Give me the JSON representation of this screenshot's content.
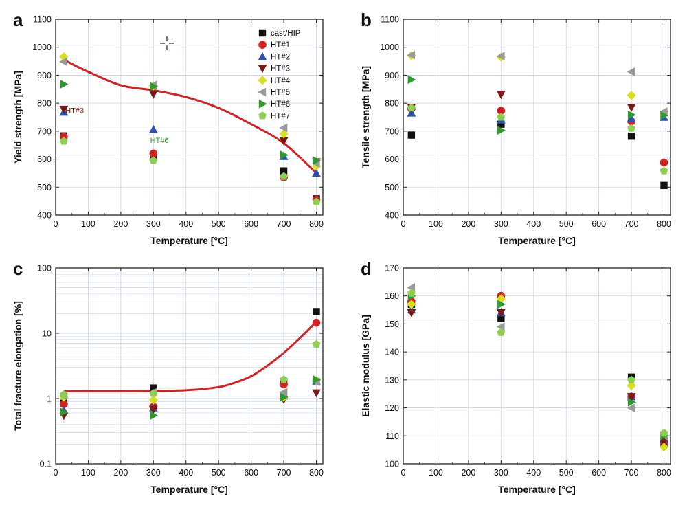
{
  "styles": {
    "series_colors": {
      "cast/HIP": "#111111",
      "HT#1": "#d42020",
      "HT#2": "#2f4fb5",
      "HT#3": "#7a1a14",
      "HT#4": "#d8df1e",
      "HT#5": "#9a9a9a",
      "HT#6": "#2e9a2e",
      "HT#7": "#8dcf52"
    },
    "series_markers": {
      "cast/HIP": "square",
      "HT#1": "circle",
      "HT#2": "triangle-up",
      "HT#3": "triangle-down",
      "HT#4": "diamond",
      "HT#5": "triangle-left",
      "HT#6": "triangle-right",
      "HT#7": "pentagon"
    },
    "fit_curve_color": "#d42020",
    "grid_color": "#c8d3e6"
  },
  "chart_data": [
    {
      "panel_label": "a",
      "type": "scatter",
      "xlabel": "Temperature [°C]",
      "ylabel": "Yield strength [MPa]",
      "xlim": [
        0,
        820
      ],
      "ylim": [
        400,
        1100
      ],
      "xticks": [
        0,
        100,
        200,
        300,
        400,
        500,
        600,
        700,
        800
      ],
      "yticks": [
        400,
        500,
        600,
        700,
        800,
        900,
        1000,
        1100
      ],
      "log_y": false,
      "grid": true,
      "legend_position": "top-right",
      "legend": [
        "cast/HIP",
        "HT#1",
        "HT#2",
        "HT#3",
        "HT#4",
        "HT#5",
        "HT#6",
        "HT#7"
      ],
      "series": [
        {
          "name": "cast/HIP",
          "x": [
            25,
            300,
            700,
            800
          ],
          "y": [
            683,
            605,
            558,
            458
          ]
        },
        {
          "name": "HT#1",
          "x": [
            25,
            300,
            700,
            800
          ],
          "y": [
            680,
            620,
            535,
            455
          ]
        },
        {
          "name": "HT#2",
          "x": [
            25,
            300,
            700,
            800
          ],
          "y": [
            768,
            706,
            610,
            550
          ]
        },
        {
          "name": "HT#3",
          "x": [
            25,
            300,
            700,
            800
          ],
          "y": [
            778,
            832,
            665,
            590
          ]
        },
        {
          "name": "HT#4",
          "x": [
            25,
            300,
            700,
            800
          ],
          "y": [
            966,
            862,
            690,
            575
          ]
        },
        {
          "name": "HT#5",
          "x": [
            25,
            300,
            700,
            800
          ],
          "y": [
            948,
            865,
            712,
            585
          ]
        },
        {
          "name": "HT#6",
          "x": [
            25,
            300,
            700,
            800
          ],
          "y": [
            868,
            860,
            615,
            595
          ]
        },
        {
          "name": "HT#7",
          "x": [
            25,
            300,
            700,
            800
          ],
          "y": [
            664,
            595,
            538,
            447
          ]
        }
      ],
      "fit_curve": {
        "x": [
          25,
          100,
          200,
          300,
          400,
          500,
          600,
          700,
          800
        ],
        "y": [
          955,
          912,
          864,
          846,
          822,
          783,
          725,
          657,
          550
        ]
      },
      "annotations": [
        {
          "text": "HT#3",
          "x": 30,
          "y": 775,
          "color": "#7a1a14"
        },
        {
          "text": "HT#6",
          "x": 290,
          "y": 668,
          "color": "#2e9a2e"
        }
      ]
    },
    {
      "panel_label": "b",
      "type": "scatter",
      "xlabel": "Temperature [°C]",
      "ylabel": "Tensile strength [MPa]",
      "xlim": [
        0,
        820
      ],
      "ylim": [
        400,
        1100
      ],
      "xticks": [
        0,
        100,
        200,
        300,
        400,
        500,
        600,
        700,
        800
      ],
      "yticks": [
        400,
        500,
        600,
        700,
        800,
        900,
        1000,
        1100
      ],
      "log_y": false,
      "grid": true,
      "series": [
        {
          "name": "cast/HIP",
          "x": [
            25,
            300,
            700,
            800
          ],
          "y": [
            686,
            725,
            682,
            506
          ]
        },
        {
          "name": "HT#1",
          "x": [
            25,
            300,
            700,
            800
          ],
          "y": [
            780,
            773,
            735,
            588
          ]
        },
        {
          "name": "HT#2",
          "x": [
            25,
            300,
            700,
            800
          ],
          "y": [
            765,
            740,
            745,
            750
          ]
        },
        {
          "name": "HT#3",
          "x": [
            25,
            300,
            700,
            800
          ],
          "y": [
            785,
            831,
            785,
            760
          ]
        },
        {
          "name": "HT#4",
          "x": [
            25,
            300,
            700,
            800
          ],
          "y": [
            970,
            965,
            828,
            765
          ]
        },
        {
          "name": "HT#5",
          "x": [
            25,
            300,
            700,
            800
          ],
          "y": [
            972,
            968,
            912,
            770
          ]
        },
        {
          "name": "HT#6",
          "x": [
            25,
            300,
            700,
            800
          ],
          "y": [
            884,
            703,
            758,
            756
          ]
        },
        {
          "name": "HT#7",
          "x": [
            25,
            300,
            700,
            800
          ],
          "y": [
            783,
            750,
            710,
            558
          ]
        }
      ]
    },
    {
      "panel_label": "c",
      "type": "scatter",
      "xlabel": "Temperature [°C]",
      "ylabel": "Total fracture elongation [%]",
      "xlim": [
        0,
        820
      ],
      "ylim": [
        0.1,
        100
      ],
      "xticks": [
        0,
        100,
        200,
        300,
        400,
        500,
        600,
        700,
        800
      ],
      "yticks": [
        0.1,
        1,
        10,
        100
      ],
      "ytick_labels": [
        "0.1",
        "1",
        "10",
        "100"
      ],
      "log_y": true,
      "grid": true,
      "series": [
        {
          "name": "cast/HIP",
          "x": [
            25,
            300,
            700,
            800
          ],
          "y": [
            0.85,
            1.45,
            1.75,
            21.5
          ]
        },
        {
          "name": "HT#1",
          "x": [
            25,
            300,
            700,
            800
          ],
          "y": [
            0.82,
            0.75,
            1.65,
            14.5
          ]
        },
        {
          "name": "HT#2",
          "x": [
            25,
            300,
            700,
            800
          ],
          "y": [
            0.66,
            0.72,
            1.1,
            1.85
          ]
        },
        {
          "name": "HT#3",
          "x": [
            25,
            300,
            700,
            800
          ],
          "y": [
            0.55,
            0.68,
            0.97,
            1.22
          ]
        },
        {
          "name": "HT#4",
          "x": [
            25,
            300,
            700,
            800
          ],
          "y": [
            1.05,
            0.95,
            1.05,
            1.9
          ]
        },
        {
          "name": "HT#5",
          "x": [
            25,
            300,
            700,
            800
          ],
          "y": [
            1.1,
            1.25,
            1.25,
            1.8
          ]
        },
        {
          "name": "HT#6",
          "x": [
            25,
            300,
            700,
            800
          ],
          "y": [
            0.62,
            0.55,
            1.05,
            1.95
          ]
        },
        {
          "name": "HT#7",
          "x": [
            25,
            300,
            700,
            800
          ],
          "y": [
            1.15,
            1.2,
            1.95,
            6.8
          ]
        }
      ],
      "fit_curve": {
        "x": [
          25,
          100,
          200,
          300,
          400,
          500,
          550,
          600,
          650,
          700,
          750,
          800
        ],
        "y": [
          1.3,
          1.3,
          1.3,
          1.31,
          1.34,
          1.5,
          1.75,
          2.2,
          3.2,
          5.0,
          8.5,
          15.0
        ]
      }
    },
    {
      "panel_label": "d",
      "type": "scatter",
      "xlabel": "Temperature [°C]",
      "ylabel": "Elastic modulus [GPa]",
      "xlim": [
        0,
        820
      ],
      "ylim": [
        100,
        170
      ],
      "xticks": [
        0,
        100,
        200,
        300,
        400,
        500,
        600,
        700,
        800
      ],
      "yticks": [
        100,
        110,
        120,
        130,
        140,
        150,
        160,
        170
      ],
      "log_y": false,
      "grid": true,
      "series": [
        {
          "name": "cast/HIP",
          "x": [
            25,
            300,
            700,
            800
          ],
          "y": [
            157,
            152,
            131,
            107
          ]
        },
        {
          "name": "HT#1",
          "x": [
            25,
            300,
            700,
            800
          ],
          "y": [
            158,
            160,
            124,
            108
          ]
        },
        {
          "name": "HT#2",
          "x": [
            25,
            300,
            700,
            800
          ],
          "y": [
            155,
            154,
            124,
            109
          ]
        },
        {
          "name": "HT#3",
          "x": [
            25,
            300,
            700,
            800
          ],
          "y": [
            154,
            154,
            124,
            108
          ]
        },
        {
          "name": "HT#4",
          "x": [
            25,
            300,
            700,
            800
          ],
          "y": [
            157,
            159,
            128,
            106
          ]
        },
        {
          "name": "HT#5",
          "x": [
            25,
            300,
            700,
            800
          ],
          "y": [
            163,
            149,
            120,
            110
          ]
        },
        {
          "name": "HT#6",
          "x": [
            25,
            300,
            700,
            800
          ],
          "y": [
            160,
            157,
            122,
            110
          ]
        },
        {
          "name": "HT#7",
          "x": [
            25,
            300,
            700,
            800
          ],
          "y": [
            161,
            147,
            130,
            111
          ]
        }
      ]
    }
  ]
}
